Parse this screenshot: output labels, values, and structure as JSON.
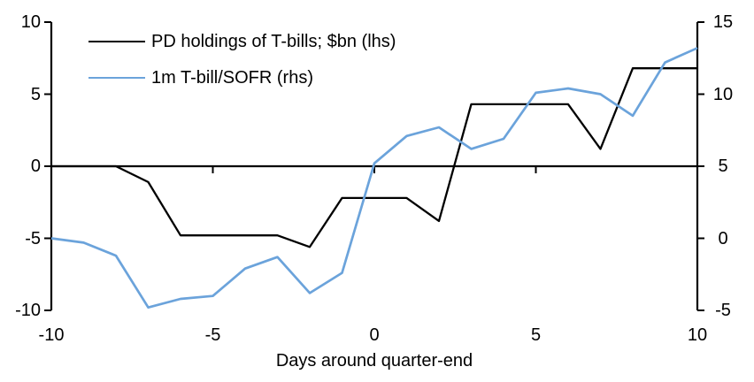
{
  "chart_data": {
    "type": "line",
    "x": [
      -10,
      -9,
      -8,
      -7,
      -6,
      -5,
      -4,
      -3,
      -2,
      -1,
      0,
      1,
      2,
      3,
      4,
      5,
      6,
      7,
      8,
      9,
      10
    ],
    "series": [
      {
        "name": "PD holdings of T-bills; $bn (lhs)",
        "axis": "left",
        "color": "#000000",
        "values": [
          0,
          0,
          0,
          -1.1,
          -4.8,
          -4.8,
          -4.8,
          -4.8,
          -5.6,
          -2.2,
          -2.2,
          -2.2,
          -3.8,
          4.3,
          4.3,
          4.3,
          4.3,
          1.2,
          6.8,
          6.8,
          6.8
        ]
      },
      {
        "name": "1m T-bill/SOFR (rhs)",
        "axis": "right",
        "color": "#6BA3DB",
        "values": [
          0,
          -0.3,
          -1.2,
          -4.8,
          -4.2,
          -4.0,
          -2.1,
          -1.3,
          -3.8,
          -2.4,
          5.2,
          7.1,
          7.7,
          6.2,
          6.9,
          10.1,
          10.4,
          10.0,
          8.5,
          12.2,
          13.2
        ]
      }
    ],
    "x_axis": {
      "title": "Days around quarter-end",
      "min": -10,
      "max": 10,
      "ticks": [
        -10,
        -5,
        0,
        5,
        10
      ]
    },
    "left_axis": {
      "min": -10,
      "max": 10,
      "ticks": [
        10,
        5,
        0,
        -5,
        -10
      ]
    },
    "right_axis": {
      "min": -5,
      "max": 15,
      "ticks": [
        15,
        10,
        5,
        0,
        -5
      ]
    },
    "legend": {
      "position": "top-left"
    },
    "grid": false,
    "axis_color": "#000000",
    "background_color": "#ffffff"
  }
}
